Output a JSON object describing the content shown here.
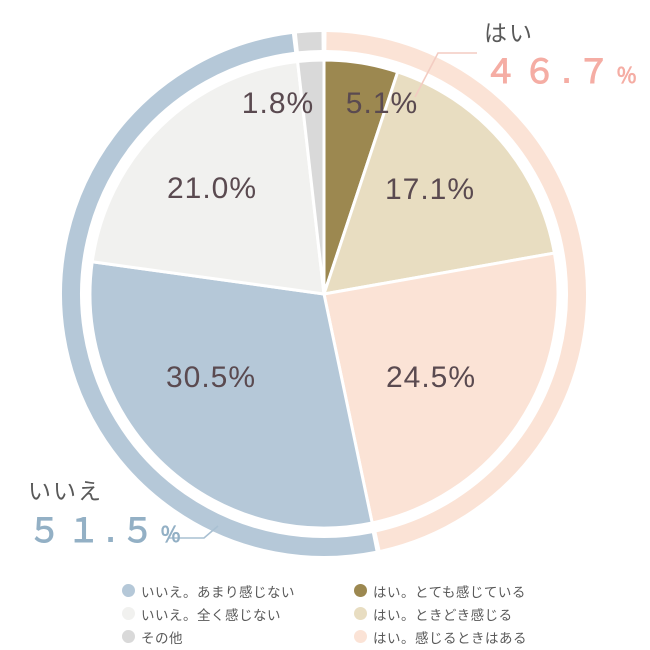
{
  "chart_data": {
    "type": "pie",
    "start_angle_deg": 0,
    "direction": "clockwise",
    "slices": [
      {
        "name": "はい。とても感じている",
        "value": 5.1,
        "label": "5.1%",
        "color": "#9c8850",
        "group": "yes"
      },
      {
        "name": "はい。ときどき感じる",
        "value": 17.1,
        "label": "17.1%",
        "color": "#e8ddc1",
        "group": "yes"
      },
      {
        "name": "はい。感じるときはある",
        "value": 24.5,
        "label": "24.5%",
        "color": "#fbe3d6",
        "group": "yes"
      },
      {
        "name": "いいえ。あまり感じない",
        "value": 30.5,
        "label": "30.5%",
        "color": "#b5c8d8",
        "group": "no"
      },
      {
        "name": "いいえ。全く感じない",
        "value": 21.0,
        "label": "21.0%",
        "color": "#f1f1ef",
        "group": "no"
      },
      {
        "name": "その他",
        "value": 1.8,
        "label": "1.8%",
        "color": "#d9d9d9",
        "group": "other"
      }
    ],
    "groups": [
      {
        "key": "yes",
        "name": "はい",
        "value": "４６.７",
        "value_plain": 46.7,
        "unit": "％",
        "ring_color": "#fbe3d6",
        "value_color": "#f5ada4",
        "line_color": "#f3ccc2"
      },
      {
        "key": "no",
        "name": "いいえ",
        "value": "５１.５",
        "value_plain": 51.5,
        "unit": "％",
        "ring_color": "#b5c8d8",
        "value_color": "#93b0c5",
        "line_color": "#a9c0d2"
      },
      {
        "key": "other",
        "name": "その他",
        "value": "",
        "value_plain": 1.8,
        "unit": "",
        "ring_color": "#d9d9d9",
        "value_color": "#d9d9d9",
        "line_color": "#d9d9d9"
      }
    ],
    "legend": {
      "columns": [
        {
          "items": [
            {
              "label": "いいえ。あまり感じない",
              "color": "#b5c8d8"
            },
            {
              "label": "いいえ。全く感じない",
              "color": "#f1f1ef"
            },
            {
              "label": "その他",
              "color": "#d9d9d9"
            }
          ]
        },
        {
          "items": [
            {
              "label": "はい。とても感じている",
              "color": "#9c8850"
            },
            {
              "label": "はい。ときどき感じる",
              "color": "#e8ddc1"
            },
            {
              "label": "はい。感じるときはある",
              "color": "#fbe3d6"
            }
          ]
        }
      ]
    },
    "colors": {
      "slice_border": "#ffffff",
      "label_text": "#5a4a50",
      "callout_name_text": "#595959",
      "legend_text": "#595959"
    },
    "title": "",
    "legend_position": "bottom"
  }
}
